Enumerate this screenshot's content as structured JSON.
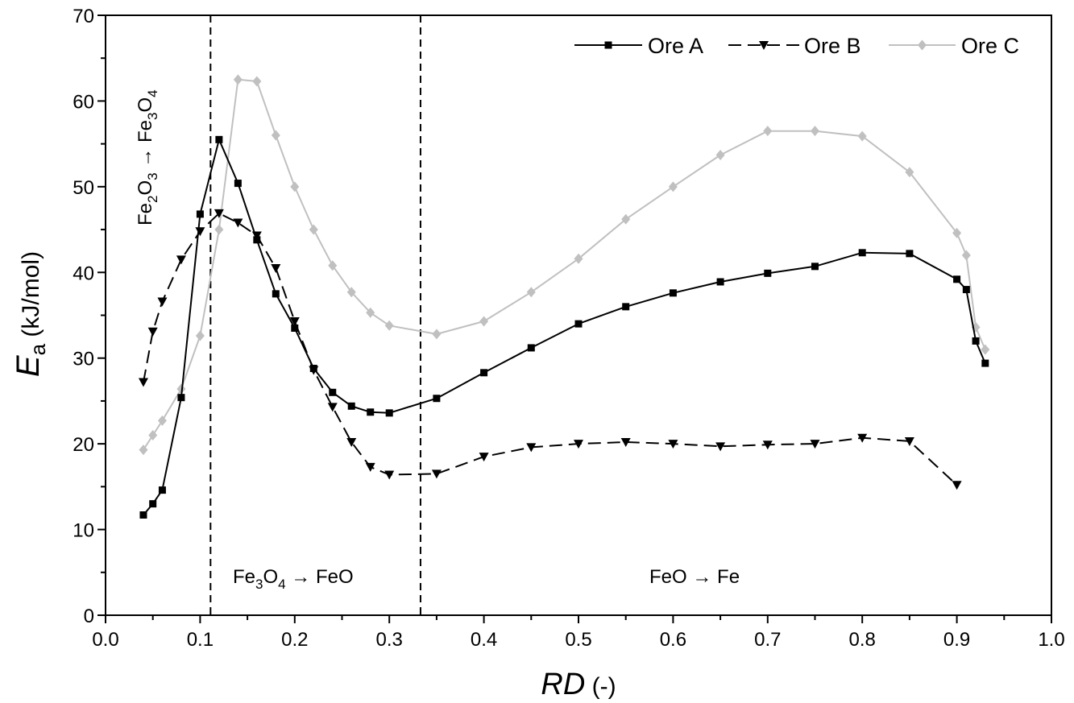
{
  "chart_data": {
    "type": "line",
    "xlabel": {
      "main": "RD",
      "suffix": " (-)"
    },
    "ylabel": {
      "main": "E",
      "sub": "a",
      "suffix": " (kJ/mol)"
    },
    "xlim": [
      0.0,
      1.0
    ],
    "ylim": [
      0,
      70
    ],
    "xticks": [
      "0.0",
      "0.1",
      "0.2",
      "0.3",
      "0.4",
      "0.5",
      "0.6",
      "0.7",
      "0.8",
      "0.9",
      "1.0"
    ],
    "yticks": [
      "0",
      "10",
      "20",
      "30",
      "40",
      "50",
      "60",
      "70"
    ],
    "grid": false,
    "legend_position": "top-right",
    "series": [
      {
        "name": "Ore A",
        "color": "#000000",
        "line_style": "solid",
        "marker": "square",
        "x": [
          0.04,
          0.05,
          0.06,
          0.08,
          0.1,
          0.12,
          0.14,
          0.16,
          0.18,
          0.2,
          0.22,
          0.24,
          0.26,
          0.28,
          0.3,
          0.35,
          0.4,
          0.45,
          0.5,
          0.55,
          0.6,
          0.65,
          0.7,
          0.75,
          0.8,
          0.85,
          0.9,
          0.91,
          0.92,
          0.93
        ],
        "y": [
          11.7,
          13.0,
          14.6,
          25.4,
          46.8,
          55.5,
          50.4,
          43.8,
          37.5,
          33.5,
          28.8,
          26.0,
          24.4,
          23.7,
          23.6,
          25.3,
          28.3,
          31.2,
          34.0,
          36.0,
          37.6,
          38.9,
          39.9,
          40.7,
          42.3,
          42.2,
          39.2,
          38.0,
          32.0,
          29.4
        ]
      },
      {
        "name": "Ore B",
        "color": "#000000",
        "line_style": "dashed",
        "marker": "triangle-down",
        "x": [
          0.04,
          0.05,
          0.06,
          0.08,
          0.1,
          0.12,
          0.14,
          0.16,
          0.18,
          0.2,
          0.22,
          0.24,
          0.26,
          0.28,
          0.3,
          0.35,
          0.4,
          0.45,
          0.5,
          0.55,
          0.6,
          0.65,
          0.7,
          0.75,
          0.8,
          0.85,
          0.9
        ],
        "y": [
          27.2,
          33.1,
          36.6,
          41.5,
          44.8,
          46.9,
          45.8,
          44.3,
          40.5,
          34.3,
          28.6,
          24.3,
          20.2,
          17.3,
          16.4,
          16.5,
          18.5,
          19.6,
          20.0,
          20.2,
          20.0,
          19.7,
          19.9,
          20.0,
          20.7,
          20.3,
          15.2
        ]
      },
      {
        "name": "Ore C",
        "color": "#c0c0c0",
        "line_style": "solid",
        "marker": "diamond",
        "x": [
          0.04,
          0.05,
          0.06,
          0.08,
          0.1,
          0.12,
          0.14,
          0.16,
          0.18,
          0.2,
          0.22,
          0.24,
          0.26,
          0.28,
          0.3,
          0.35,
          0.4,
          0.45,
          0.5,
          0.55,
          0.6,
          0.65,
          0.7,
          0.75,
          0.8,
          0.85,
          0.9,
          0.91,
          0.92,
          0.93
        ],
        "y": [
          19.3,
          21.0,
          22.7,
          26.4,
          32.6,
          45.0,
          62.5,
          62.3,
          56.0,
          50.0,
          45.0,
          40.8,
          37.7,
          35.3,
          33.8,
          32.8,
          34.3,
          37.7,
          41.6,
          46.2,
          50.0,
          53.7,
          56.5,
          56.5,
          55.9,
          51.7,
          44.6,
          42.0,
          33.6,
          31.0
        ]
      }
    ],
    "vertical_lines": [
      {
        "x": 0.111,
        "style": "dashed"
      },
      {
        "x": 0.333,
        "style": "dashed"
      }
    ],
    "annotations": [
      {
        "id": "fe2o3-fe3o4",
        "parts": [
          [
            "Fe",
            ""
          ],
          [
            "2",
            "sub"
          ],
          [
            "O",
            ""
          ],
          [
            "3",
            "sub"
          ],
          [
            " → ",
            ""
          ],
          [
            "Fe",
            ""
          ],
          [
            "3",
            "sub"
          ],
          [
            "O",
            ""
          ],
          [
            "4",
            "sub"
          ]
        ]
      },
      {
        "id": "fe3o4-feo",
        "parts": [
          [
            "Fe",
            ""
          ],
          [
            "3",
            "sub"
          ],
          [
            "O",
            ""
          ],
          [
            "4",
            "sub"
          ],
          [
            " → ",
            ""
          ],
          [
            "FeO",
            ""
          ]
        ]
      },
      {
        "id": "feo-fe",
        "parts": [
          [
            "FeO",
            ""
          ],
          [
            " → ",
            ""
          ],
          [
            "Fe",
            ""
          ]
        ]
      }
    ]
  }
}
